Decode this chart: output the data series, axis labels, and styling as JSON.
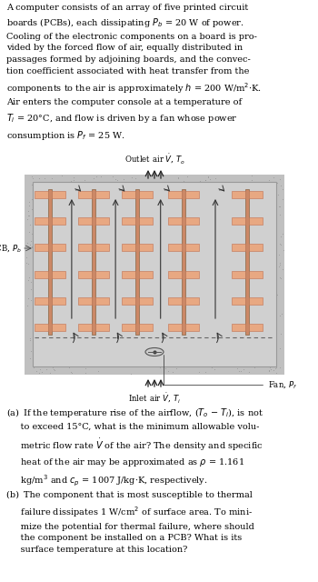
{
  "bg_color": "#ffffff",
  "fig_width": 3.5,
  "fig_height": 6.4,
  "dpi": 100,
  "pcb_color": "#e8a882",
  "pcb_edge": "#c07050",
  "board_color": "#d4906a",
  "inner_bg": "#d0d0d0",
  "outer_bg": "#b8b8b8",
  "stipple_bg": "#c0c0c0",
  "outlet_label": "Outlet air $\\dot{V}$, $T_o$",
  "inlet_label": "Inlet air $\\dot{V}$, $T_i$",
  "fan_label": "Fan, $P_f$",
  "pcb_label": "PCB, $P_b$",
  "arrow_color": "#333333",
  "top_text_line1": "A computer consists of an array of five printed circuit",
  "top_text_line2": "boards (PCBs), each dissipating $P_b$ = 20 W of power.",
  "top_text_line3": "Cooling of the electronic components on a board is pro-",
  "top_text_line4": "vided by the forced flow of air, equally distributed in",
  "top_text_line5": "passages formed by adjoining boards, and the convec-",
  "top_text_line6": "tion coefficient associated with heat transfer from the",
  "top_text_line7": "components to the air is approximately $h$ = 200 W/m$^2$$\\cdot$K.",
  "top_text_line8": "Air enters the computer console at a temperature of",
  "top_text_line9": "$T_i$ = 20°C, and flow is driven by a fan whose power",
  "top_text_line10": "consumption is $P_f$ = 25 W.",
  "qa_text": "(a) If the temperature rise of the airflow, ($T_o$ − $T_i$), is not\n     to exceed 15°C, what is the minimum allowable volu-\n     metric flow rate $\\dot{V}$ of the air? The density and specific\n     heat of the air may be approximated as $\\rho$ = 1.161\n     kg/m$^3$ and $c_p$ = 1007 J/kg·K, respectively.",
  "qb_text": "(b) The component that is most susceptible to thermal\n     failure dissipates 1 W/cm$^2$ of surface area. To mini-\n     mize the potential for thermal failure, where should\n     the component be installed on a PCB? What is its\n     surface temperature at this location?"
}
